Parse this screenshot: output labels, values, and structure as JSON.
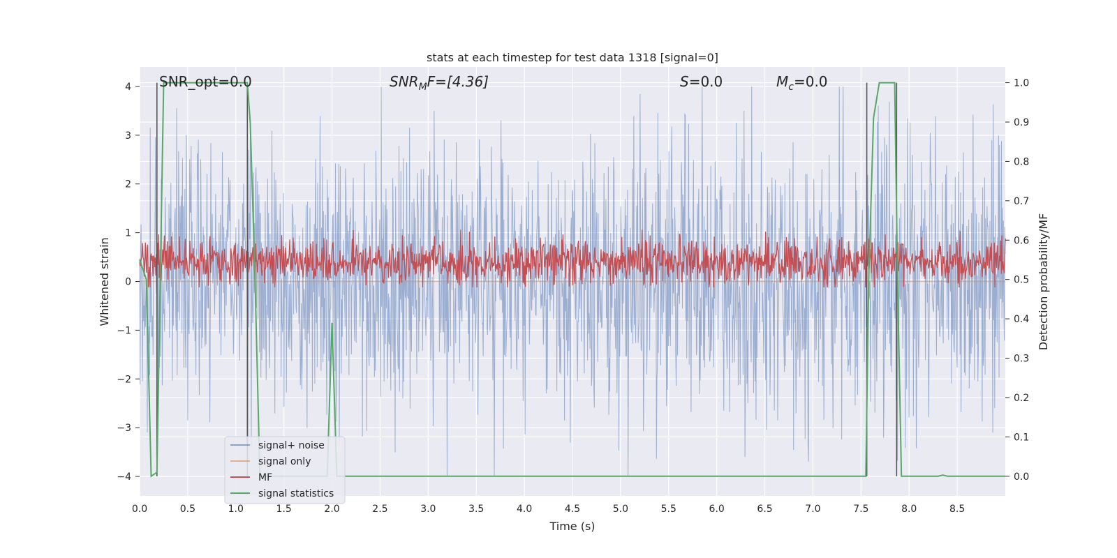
{
  "chart_data": {
    "type": "line",
    "title": "stats at each timestep for test data 1318 [signal=0]",
    "xlabel": "Time (s)",
    "ylabel_left": "Whitened strain",
    "ylabel_right": "Detection probability/MF",
    "xlim": [
      0.0,
      9.0
    ],
    "ylim_left": [
      -4.4,
      4.4
    ],
    "ylim_right": [
      -0.05,
      1.04
    ],
    "x_ticks": [
      0.0,
      0.5,
      1.0,
      1.5,
      2.0,
      2.5,
      3.0,
      3.5,
      4.0,
      4.5,
      5.0,
      5.5,
      6.0,
      6.5,
      7.0,
      7.5,
      8.0,
      8.5
    ],
    "x_tick_labels": [
      "0.0",
      "0.5",
      "1.0",
      "1.5",
      "2.0",
      "2.5",
      "3.0",
      "3.5",
      "4.0",
      "4.5",
      "5.0",
      "5.5",
      "6.0",
      "6.5",
      "7.0",
      "7.5",
      "8.0",
      "8.5"
    ],
    "y_left_ticks": [
      -4,
      -3,
      -2,
      -1,
      0,
      1,
      2,
      3,
      4
    ],
    "y_left_tick_labels": [
      "−4",
      "−3",
      "−2",
      "−1",
      "0",
      "1",
      "2",
      "3",
      "4"
    ],
    "y_right_ticks": [
      0.0,
      0.1,
      0.2,
      0.3,
      0.4,
      0.5,
      0.6,
      0.7,
      0.8,
      0.9,
      1.0
    ],
    "y_right_tick_labels": [
      "0.0",
      "0.1",
      "0.2",
      "0.3",
      "0.4",
      "0.5",
      "0.6",
      "0.7",
      "0.8",
      "0.9",
      "1.0"
    ],
    "grid": true,
    "legend_placement": "lower-left",
    "annotations": {
      "snr_opt": "SNR_opt=0.0",
      "snr_mf_prefix": "SNR",
      "snr_mf_sub": "M",
      "snr_mf_rest": "F=[4.36]",
      "s_prefix": "S",
      "s_rest": "=0.0",
      "mc_prefix": "M",
      "mc_sub": "c",
      "mc_rest": "=0.0"
    },
    "series": [
      {
        "name": "signal+ noise",
        "axis": "left",
        "color": "#4c72b0",
        "style": "noise",
        "x_range": [
          0.0,
          9.0
        ],
        "approx_range": [
          -4.0,
          4.0
        ]
      },
      {
        "name": "signal only",
        "axis": "left",
        "color": "#dd8452",
        "style": "flat",
        "value": 0.0
      },
      {
        "name": "MF",
        "axis": "right",
        "color": "#c44e52",
        "style": "noise",
        "x_range": [
          0.0,
          9.0
        ],
        "approx_range": [
          0.48,
          0.63
        ]
      },
      {
        "name": "signal statistics",
        "axis": "right",
        "color": "#55a868",
        "style": "line",
        "x": [
          0.0,
          0.07,
          0.12,
          0.18,
          0.25,
          1.12,
          1.15,
          1.2,
          1.25,
          1.3,
          1.35,
          1.4,
          1.45,
          1.5,
          1.55,
          1.6,
          1.65,
          1.7,
          1.75,
          1.8,
          1.85,
          1.9,
          1.95,
          2.0,
          2.05,
          2.1,
          2.15,
          7.55,
          7.58,
          7.63,
          7.69,
          7.85,
          7.88,
          7.92,
          8.0,
          8.3,
          8.35,
          8.4,
          8.45,
          9.0
        ],
        "y": [
          0.55,
          0.5,
          0.0,
          0.01,
          1.0,
          1.0,
          0.9,
          0.5,
          0.0,
          0.0,
          0.0,
          0.0,
          0.0,
          0.0,
          0.0,
          0.0,
          0.0,
          0.0,
          0.0,
          0.0,
          0.0,
          0.0,
          0.0,
          0.39,
          0.0,
          0.0,
          0.0,
          0.0,
          0.5,
          0.91,
          1.0,
          1.0,
          0.5,
          0.0,
          0.0,
          0.0,
          0.003,
          0.0,
          0.0,
          0.0
        ]
      }
    ],
    "vertical_markers": [
      0.18,
      1.12,
      7.56,
      7.87
    ],
    "colors": {
      "plot_background": "#eaeaf2",
      "grid": "#ffffff",
      "text": "#262626",
      "marker_line": "#555555"
    }
  }
}
